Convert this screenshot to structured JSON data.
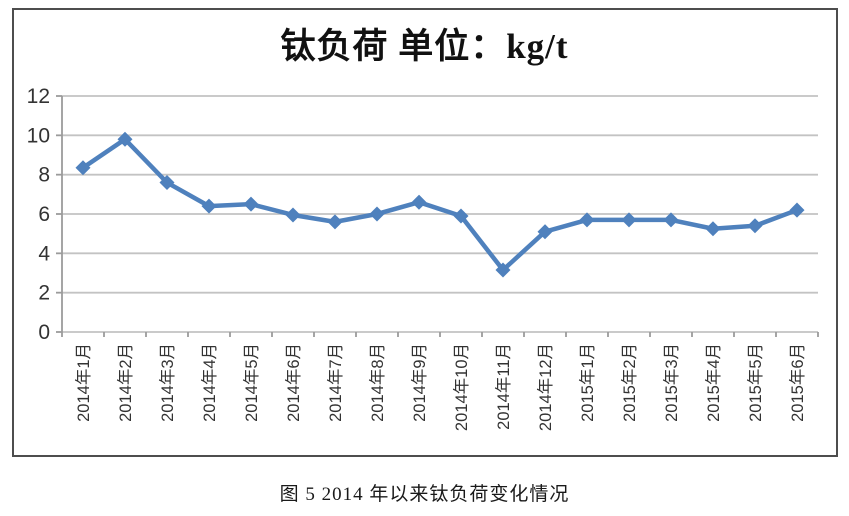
{
  "figure": {
    "title": "钛负荷 单位：kg/t",
    "caption": "图 5  2014 年以来钛负荷变化情况"
  },
  "chart_data": {
    "type": "line",
    "title": "钛负荷 单位：kg/t",
    "categories": [
      "2014年1月",
      "2014年2月",
      "2014年3月",
      "2014年4月",
      "2014年5月",
      "2014年6月",
      "2014年7月",
      "2014年8月",
      "2014年9月",
      "2014年10月",
      "2014年11月",
      "2014年12月",
      "2015年1月",
      "2015年2月",
      "2015年3月",
      "2015年4月",
      "2015年5月",
      "2015年6月"
    ],
    "series": [
      {
        "name": "钛负荷",
        "values": [
          8.35,
          9.8,
          7.6,
          6.4,
          6.5,
          5.95,
          5.6,
          6.0,
          6.6,
          5.9,
          3.15,
          5.1,
          5.7,
          5.7,
          5.7,
          5.25,
          5.4,
          6.2
        ]
      }
    ],
    "xlabel": "",
    "ylabel": "",
    "ylim": [
      0,
      12
    ],
    "ytick_step": 2,
    "yticks": [
      0,
      2,
      4,
      6,
      8,
      10,
      12
    ],
    "grid": true,
    "legend_position": "none",
    "marker": "diamond",
    "colors": {
      "line": "#4F81BD",
      "grid": "#c3c3c3",
      "axis": "#9b9b9b",
      "tick_text": "#333333",
      "frame_border": "#4d4d4d"
    }
  }
}
